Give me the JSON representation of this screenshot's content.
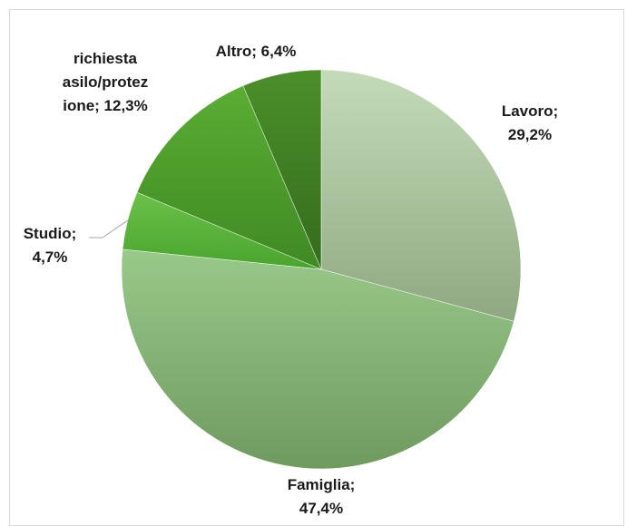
{
  "chart_data": {
    "type": "pie",
    "title": "",
    "slices": [
      {
        "name": "Lavoro",
        "value": 29.2,
        "label_lines": [
          "Lavoro;",
          "29,2%"
        ]
      },
      {
        "name": "Famiglia",
        "value": 47.4,
        "label_lines": [
          "Famiglia;",
          "47,4%"
        ]
      },
      {
        "name": "Studio",
        "value": 4.7,
        "label_lines": [
          "Studio;",
          "4,7%"
        ]
      },
      {
        "name": "richiesta asilo/protezione",
        "value": 12.3,
        "label_lines": [
          "richiesta",
          "asilo/protez",
          "ione; 12,3%"
        ]
      },
      {
        "name": "Altro",
        "value": 6.4,
        "label_lines": [
          "Altro; 6,4%"
        ]
      }
    ],
    "colors": [
      {
        "top": "#c3dbb7",
        "bottom": "#90a882"
      },
      {
        "top": "#99c98a",
        "bottom": "#6f9a5e"
      },
      {
        "top": "#6cc04a",
        "bottom": "#48a52d"
      },
      {
        "top": "#5aad34",
        "bottom": "#3f8a23"
      },
      {
        "top": "#4b8f2a",
        "bottom": "#346c1c"
      }
    ],
    "legend": "none",
    "grid": false
  }
}
